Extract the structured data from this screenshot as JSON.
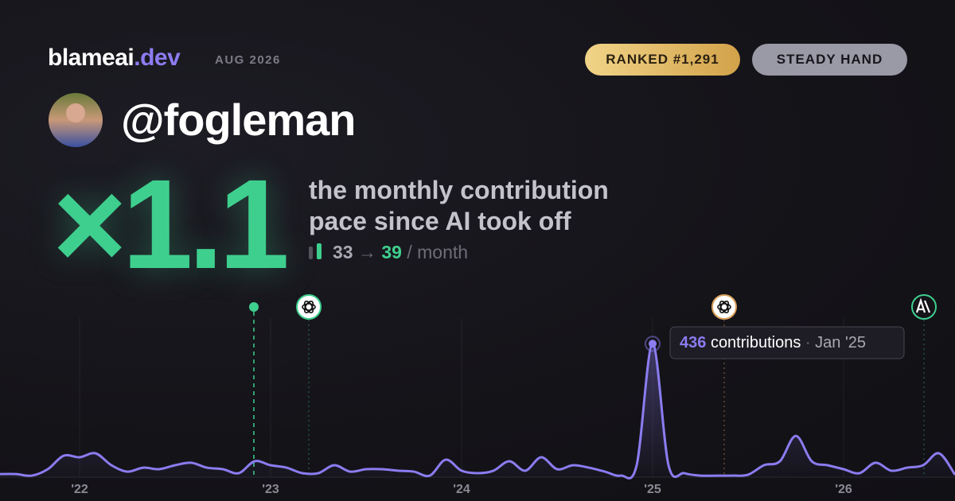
{
  "brand": {
    "name": "blameai",
    "tld": ".dev",
    "date": "AUG 2026"
  },
  "badges": [
    "RANKED #1,291",
    "STEADY HAND"
  ],
  "user": {
    "handle": "@fogleman"
  },
  "headline": {
    "multiplier": "×1.1",
    "line1": "the monthly contribution",
    "line2": "pace since AI took off",
    "before": 33,
    "arrow": "→",
    "after": 39,
    "unit": "/ month"
  },
  "chart_data": {
    "type": "line",
    "color": "#8b7cf0",
    "x": [
      "2021-08",
      "2021-09",
      "2021-10",
      "2021-11",
      "2021-12",
      "2022-01",
      "2022-02",
      "2022-03",
      "2022-04",
      "2022-05",
      "2022-06",
      "2022-07",
      "2022-08",
      "2022-09",
      "2022-10",
      "2022-11",
      "2022-12",
      "2023-01",
      "2023-02",
      "2023-03",
      "2023-04",
      "2023-05",
      "2023-06",
      "2023-07",
      "2023-08",
      "2023-09",
      "2023-10",
      "2023-11",
      "2023-12",
      "2024-01",
      "2024-02",
      "2024-03",
      "2024-04",
      "2024-05",
      "2024-06",
      "2024-07",
      "2024-08",
      "2024-09",
      "2024-10",
      "2024-11",
      "2024-12",
      "2025-01",
      "2025-02",
      "2025-03",
      "2025-04",
      "2025-05",
      "2025-06",
      "2025-07",
      "2025-08",
      "2025-09",
      "2025-10",
      "2025-11",
      "2025-12",
      "2026-01",
      "2026-02",
      "2026-03",
      "2026-04",
      "2026-05",
      "2026-06",
      "2026-07",
      "2026-08"
    ],
    "values": [
      10,
      10,
      5,
      26,
      70,
      65,
      78,
      39,
      18,
      31,
      26,
      39,
      47,
      31,
      26,
      13,
      52,
      39,
      31,
      13,
      13,
      39,
      18,
      26,
      26,
      21,
      18,
      5,
      57,
      21,
      13,
      21,
      52,
      21,
      65,
      26,
      39,
      31,
      18,
      5,
      39,
      436,
      39,
      13,
      5,
      5,
      5,
      8,
      39,
      52,
      135,
      52,
      39,
      26,
      13,
      47,
      21,
      31,
      39,
      78,
      8
    ],
    "xlim": [
      "2021-08",
      "2026-08"
    ],
    "ylim": [
      0,
      520
    ],
    "xticks": [
      {
        "value": "2022-01",
        "label": "'22"
      },
      {
        "value": "2023-01",
        "label": "'23"
      },
      {
        "value": "2024-01",
        "label": "'24"
      },
      {
        "value": "2025-01",
        "label": "'25"
      },
      {
        "value": "2026-01",
        "label": "'26"
      }
    ],
    "grid": true,
    "tooltip": {
      "label": "contributions",
      "separator": "·",
      "date": "Jan '25"
    }
  }
}
